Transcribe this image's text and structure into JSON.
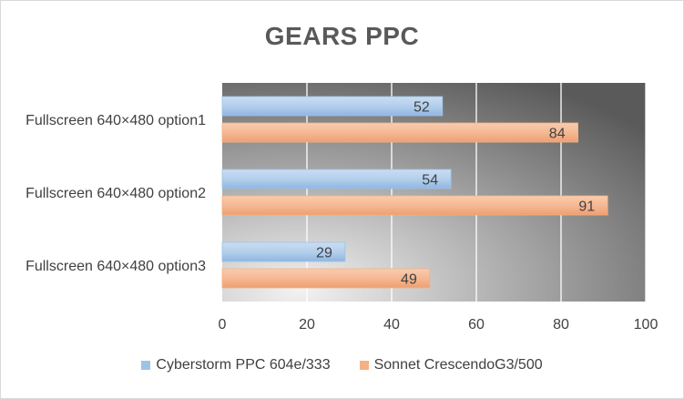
{
  "chart_data": {
    "type": "bar",
    "orientation": "horizontal",
    "title": "GEARS PPC",
    "categories": [
      "Fullscreen 640×480 option1",
      "Fullscreen 640×480 option2",
      "Fullscreen 640×480 option3"
    ],
    "series": [
      {
        "name": "Cyberstorm PPC 604e/333",
        "values": [
          52,
          54,
          29
        ],
        "color": "#9dc3e6"
      },
      {
        "name": "Sonnet CrescendoG3/500",
        "values": [
          84,
          91,
          49
        ],
        "color": "#f4b183"
      }
    ],
    "xlim": [
      0,
      100
    ],
    "xticks": [
      0,
      20,
      40,
      60,
      80,
      100
    ],
    "grid": true,
    "legend_position": "bottom",
    "data_labels": true
  }
}
